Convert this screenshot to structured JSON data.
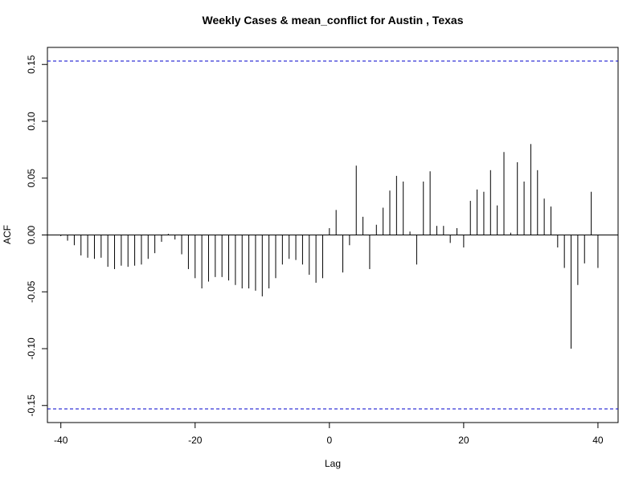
{
  "chart_data": {
    "type": "bar",
    "title": "Weekly Cases & mean_conflict for Austin , Texas",
    "xlabel": "Lag",
    "ylabel": "ACF",
    "xlim": [
      -42,
      43
    ],
    "ylim": [
      -0.165,
      0.165
    ],
    "x_ticks": [
      -40,
      -20,
      0,
      20,
      40
    ],
    "y_ticks": [
      -0.15,
      -0.1,
      -0.05,
      0.0,
      0.05,
      0.1,
      0.15
    ],
    "x_tick_labels": [
      "-40",
      "-20",
      "0",
      "20",
      "40"
    ],
    "y_tick_labels": [
      "-0.15",
      "-0.10",
      "-0.05",
      "0.00",
      "0.05",
      "0.10",
      "0.15"
    ],
    "confidence_bounds": [
      0.153,
      -0.153
    ],
    "confidence_color": "#0000cc",
    "grid": false,
    "lags": [
      -40,
      -39,
      -38,
      -37,
      -36,
      -35,
      -34,
      -33,
      -32,
      -31,
      -30,
      -29,
      -28,
      -27,
      -26,
      -25,
      -24,
      -23,
      -22,
      -21,
      -20,
      -19,
      -18,
      -17,
      -16,
      -15,
      -14,
      -13,
      -12,
      -11,
      -10,
      -9,
      -8,
      -7,
      -6,
      -5,
      -4,
      -3,
      -2,
      -1,
      0,
      1,
      2,
      3,
      4,
      5,
      6,
      7,
      8,
      9,
      10,
      11,
      12,
      13,
      14,
      15,
      16,
      17,
      18,
      19,
      20,
      21,
      22,
      23,
      24,
      25,
      26,
      27,
      28,
      29,
      30,
      31,
      32,
      33,
      34,
      35,
      36,
      37,
      38,
      39,
      40
    ],
    "values": [
      -0.001,
      -0.005,
      -0.009,
      -0.018,
      -0.02,
      -0.021,
      -0.02,
      -0.028,
      -0.03,
      -0.027,
      -0.028,
      -0.027,
      -0.026,
      -0.021,
      -0.016,
      -0.006,
      0.001,
      -0.004,
      -0.017,
      -0.03,
      -0.038,
      -0.047,
      -0.041,
      -0.037,
      -0.037,
      -0.04,
      -0.044,
      -0.047,
      -0.047,
      -0.049,
      -0.054,
      -0.047,
      -0.038,
      -0.026,
      -0.021,
      -0.022,
      -0.026,
      -0.035,
      -0.042,
      -0.038,
      0.006,
      0.022,
      -0.033,
      -0.009,
      0.061,
      0.016,
      -0.03,
      0.009,
      0.024,
      0.039,
      0.052,
      0.047,
      0.003,
      -0.026,
      0.047,
      0.056,
      0.008,
      0.008,
      -0.007,
      0.006,
      -0.011,
      0.03,
      0.04,
      0.038,
      0.057,
      0.026,
      0.073,
      0.002,
      0.064,
      0.047,
      0.08,
      0.057,
      0.032,
      0.025,
      -0.011,
      -0.029,
      -0.1,
      -0.044,
      -0.025,
      0.038,
      -0.029
    ]
  }
}
